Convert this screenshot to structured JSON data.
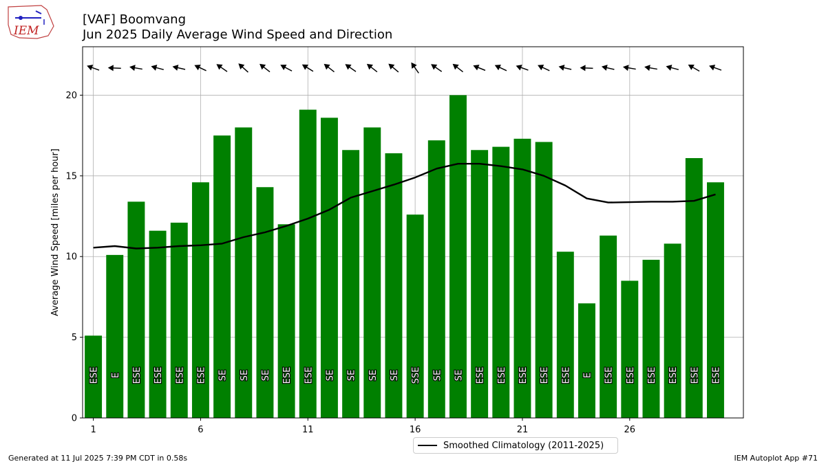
{
  "header": {
    "title_line1": "[VAF] Boomvang",
    "title_line2": "Jun 2025 Daily Average Wind Speed and Direction",
    "logo_text": "IEM"
  },
  "footer": {
    "generated": "Generated at 11 Jul 2025 7:39 PM CDT in 0.58s",
    "app": "IEM Autoplot App #71"
  },
  "legend": {
    "label": "Smoothed Climatology (2011-2025)"
  },
  "colors": {
    "bar": "#008000",
    "line": "#000000",
    "grid": "#b0b0b0",
    "arrow": "#000000"
  },
  "chart_data": {
    "type": "bar",
    "ylabel": "Average Wind Speed [miles per hour]",
    "xlabel": "",
    "ylim": [
      0,
      23
    ],
    "xlim": [
      0.5,
      31.3
    ],
    "yticks": [
      0,
      5,
      10,
      15,
      20
    ],
    "xticks": [
      1,
      6,
      11,
      16,
      21,
      26
    ],
    "grid": true,
    "legend_position": "below",
    "days": [
      1,
      2,
      3,
      4,
      5,
      6,
      7,
      8,
      9,
      10,
      11,
      12,
      13,
      14,
      15,
      16,
      17,
      18,
      19,
      20,
      21,
      22,
      23,
      24,
      25,
      26,
      27,
      28,
      29,
      30
    ],
    "values": [
      5.1,
      10.1,
      13.4,
      11.6,
      12.1,
      14.6,
      17.5,
      18.0,
      14.3,
      12.0,
      19.1,
      18.6,
      16.6,
      18.0,
      16.4,
      12.6,
      17.2,
      20.0,
      16.6,
      16.8,
      17.3,
      17.1,
      10.3,
      7.1,
      11.3,
      8.5,
      9.8,
      10.8,
      16.1,
      14.6
    ],
    "direction_labels": [
      "ESE",
      "E",
      "ESE",
      "ESE",
      "ESE",
      "ESE",
      "SE",
      "SE",
      "SE",
      "ESE",
      "ESE",
      "SE",
      "SE",
      "SE",
      "SE",
      "SSE",
      "SE",
      "SE",
      "ESE",
      "ESE",
      "ESE",
      "ESE",
      "ESE",
      "E",
      "ESE",
      "ESE",
      "ESE",
      "ESE",
      "ESE",
      "ESE"
    ],
    "direction_degrees": [
      110,
      92,
      100,
      105,
      103,
      115,
      125,
      132,
      128,
      118,
      122,
      128,
      125,
      128,
      130,
      145,
      125,
      128,
      112,
      115,
      110,
      115,
      103,
      92,
      103,
      100,
      100,
      105,
      120,
      110
    ],
    "series": [
      {
        "name": "Smoothed Climatology (2011-2025)",
        "values": [
          10.55,
          10.65,
          10.5,
          10.55,
          10.65,
          10.7,
          10.8,
          11.2,
          11.5,
          11.9,
          12.35,
          12.9,
          13.65,
          14.05,
          14.45,
          14.9,
          15.45,
          15.75,
          15.75,
          15.6,
          15.4,
          15.0,
          14.4,
          13.6,
          13.35,
          13.37,
          13.4,
          13.4,
          13.45,
          13.85
        ]
      }
    ]
  }
}
